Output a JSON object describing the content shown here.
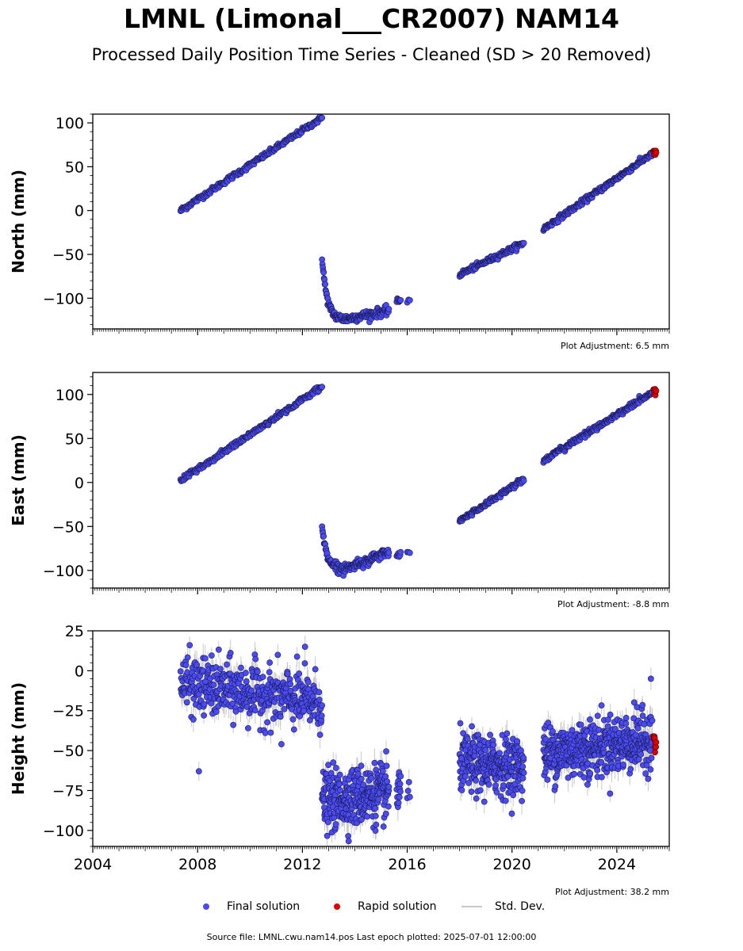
{
  "title": "LMNL (Limonal___CR2007) NAM14",
  "subtitle": "Processed Daily Position Time Series - Cleaned (SD > 20 Removed)",
  "source_text": "Source file: LMNL.cwu.nam14.pos  Last epoch plotted: 2025-07-01 12:00:00",
  "legend": {
    "final_label": "Final solution",
    "rapid_label": "Rapid solution",
    "std_label": "Std. Dev."
  },
  "colors": {
    "final": "#4b4bf5",
    "rapid": "#e00000",
    "std": "#c8c8c8"
  },
  "chart_data": [
    {
      "type": "scatter",
      "ylabel": "North (mm)",
      "xlim": [
        2004.0,
        2026.0
      ],
      "ylim": [
        -135,
        110
      ],
      "yticks": [
        -100,
        -50,
        0,
        50,
        100
      ],
      "xticks": [
        2004,
        2008,
        2012,
        2016,
        2020,
        2024
      ],
      "show_xtick_labels": false,
      "adjustment": "Plot Adjustment: 6.5 mm",
      "segments": [
        {
          "x0": 2007.35,
          "x1": 2012.75,
          "y0": 0,
          "y1": 106,
          "shape": "linear",
          "noise": 1.5,
          "n": 230
        },
        {
          "x0": 2012.75,
          "x1": 2015.3,
          "y0": -52,
          "y1": -114,
          "shape": "postseismic",
          "floor": -124,
          "noise": 2.5,
          "n": 170
        },
        {
          "x0": 2015.6,
          "x1": 2015.75,
          "y0": -104,
          "y1": -102,
          "shape": "linear",
          "noise": 1.5,
          "n": 8
        },
        {
          "x0": 2016.0,
          "x1": 2016.1,
          "y0": -103,
          "y1": -103,
          "shape": "linear",
          "noise": 1,
          "n": 3
        },
        {
          "x0": 2018.0,
          "x1": 2020.45,
          "y0": -73,
          "y1": -37,
          "shape": "linear",
          "noise": 1.5,
          "n": 130
        },
        {
          "x0": 2021.2,
          "x1": 2025.35,
          "y0": -21,
          "y1": 65,
          "shape": "linear",
          "noise": 1.5,
          "n": 220
        }
      ],
      "rapid": {
        "x0": 2025.4,
        "x1": 2025.5,
        "y": 66.5,
        "spread": 1.5,
        "n": 8
      },
      "std_mm": 1.5
    },
    {
      "type": "scatter",
      "ylabel": "East (mm)",
      "xlim": [
        2004.0,
        2026.0
      ],
      "ylim": [
        -120,
        125
      ],
      "yticks": [
        -100,
        -50,
        0,
        50,
        100
      ],
      "xticks": [
        2004,
        2008,
        2012,
        2016,
        2020,
        2024
      ],
      "show_xtick_labels": false,
      "adjustment": "Plot Adjustment: -8.8 mm",
      "segments": [
        {
          "x0": 2007.35,
          "x1": 2012.75,
          "y0": 2,
          "y1": 109,
          "shape": "linear",
          "noise": 1.5,
          "n": 230
        },
        {
          "x0": 2012.75,
          "x1": 2015.3,
          "y0": -50,
          "y1": -79,
          "shape": "postseismic",
          "floor": -98,
          "noise": 2.5,
          "n": 170
        },
        {
          "x0": 2015.6,
          "x1": 2015.75,
          "y0": -84,
          "y1": -80,
          "shape": "linear",
          "noise": 1.5,
          "n": 8
        },
        {
          "x0": 2016.0,
          "x1": 2016.1,
          "y0": -80,
          "y1": -80,
          "shape": "linear",
          "noise": 1,
          "n": 3
        },
        {
          "x0": 2018.0,
          "x1": 2020.45,
          "y0": -44,
          "y1": 4,
          "shape": "linear",
          "noise": 1.5,
          "n": 130
        },
        {
          "x0": 2021.2,
          "x1": 2025.35,
          "y0": 25,
          "y1": 102,
          "shape": "linear",
          "noise": 1.5,
          "n": 220
        }
      ],
      "rapid": {
        "x0": 2025.4,
        "x1": 2025.5,
        "y": 104,
        "spread": 2,
        "n": 8
      },
      "std_mm": 1.5
    },
    {
      "type": "scatter",
      "ylabel": "Height (mm)",
      "xlim": [
        2004.0,
        2026.0
      ],
      "ylim": [
        -110,
        25
      ],
      "yticks": [
        -100,
        -75,
        -50,
        -25,
        0,
        25
      ],
      "xticks": [
        2004,
        2008,
        2012,
        2016,
        2020,
        2024
      ],
      "show_xtick_labels": true,
      "adjustment": "Plot Adjustment: 38.2 mm",
      "segments": [
        {
          "x0": 2007.35,
          "x1": 2012.75,
          "y0": -8,
          "y1": -20,
          "shape": "linear",
          "noise": 9,
          "n": 420
        },
        {
          "x0": 2012.75,
          "x1": 2015.3,
          "y0": -82,
          "y1": -76,
          "shape": "linear",
          "noise": 9,
          "n": 300
        },
        {
          "x0": 2015.6,
          "x1": 2015.75,
          "y0": -76,
          "y1": -75,
          "shape": "linear",
          "noise": 9,
          "n": 14
        },
        {
          "x0": 2016.0,
          "x1": 2016.1,
          "y0": -78,
          "y1": -78,
          "shape": "linear",
          "noise": 4,
          "n": 4
        },
        {
          "x0": 2018.0,
          "x1": 2020.45,
          "y0": -58,
          "y1": -60,
          "shape": "linear",
          "noise": 9,
          "n": 290
        },
        {
          "x0": 2021.2,
          "x1": 2025.35,
          "y0": -52,
          "y1": -43,
          "shape": "linear",
          "noise": 9,
          "n": 460
        }
      ],
      "outliers": [
        {
          "x": 2008.05,
          "y": -63
        },
        {
          "x": 2011.2,
          "y": -46
        },
        {
          "x": 2012.1,
          "y": 15
        },
        {
          "x": 2025.3,
          "y": -5
        }
      ],
      "rapid": {
        "x0": 2025.4,
        "x1": 2025.5,
        "y": -46,
        "spread": 7,
        "n": 10
      },
      "std_mm": 6
    }
  ]
}
